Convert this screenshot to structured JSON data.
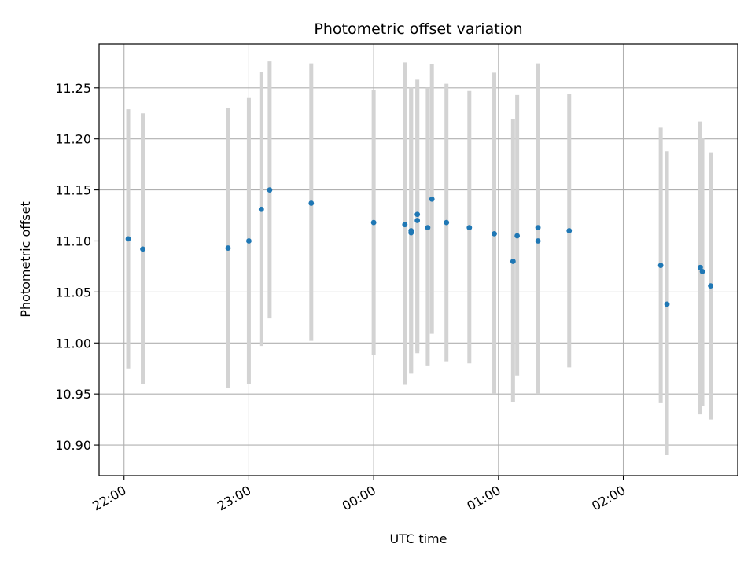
{
  "chart_data": {
    "type": "scatter",
    "title": "Photometric offset variation",
    "xlabel": "UTC time",
    "ylabel": "Photometric offset",
    "x_ticks": [
      "22:00",
      "23:00",
      "00:00",
      "01:00",
      "02:00"
    ],
    "y_ticks": [
      "10.90",
      "10.95",
      "11.00",
      "11.05",
      "11.10",
      "11.15",
      "11.20",
      "11.25"
    ],
    "xlim": [
      "21:48",
      "02:55"
    ],
    "ylim": [
      10.87,
      11.293
    ],
    "grid": true,
    "colors": {
      "point": "#1f77b4",
      "errorbar": "#d3d3d3",
      "grid": "#b0b0b0"
    },
    "points": [
      {
        "x": "22:02",
        "y": 11.102,
        "ylow": 10.975,
        "yhigh": 11.229
      },
      {
        "x": "22:09",
        "y": 11.092,
        "ylow": 10.96,
        "yhigh": 11.225
      },
      {
        "x": "22:50",
        "y": 11.093,
        "ylow": 10.956,
        "yhigh": 11.23
      },
      {
        "x": "23:00",
        "y": 11.1,
        "ylow": 10.96,
        "yhigh": 11.24
      },
      {
        "x": "23:06",
        "y": 11.131,
        "ylow": 10.997,
        "yhigh": 11.266
      },
      {
        "x": "23:10",
        "y": 11.15,
        "ylow": 11.024,
        "yhigh": 11.276
      },
      {
        "x": "23:30",
        "y": 11.137,
        "ylow": 11.002,
        "yhigh": 11.274
      },
      {
        "x": "00:00",
        "y": 11.118,
        "ylow": 10.988,
        "yhigh": 11.248
      },
      {
        "x": "00:15",
        "y": 11.116,
        "ylow": 10.959,
        "yhigh": 11.275
      },
      {
        "x": "00:18",
        "y": 11.11,
        "ylow": 10.97,
        "yhigh": 11.25
      },
      {
        "x": "00:18",
        "y": 11.108,
        "ylow": 10.97,
        "yhigh": 11.25
      },
      {
        "x": "00:21",
        "y": 11.126,
        "ylow": 10.992,
        "yhigh": 11.258
      },
      {
        "x": "00:21",
        "y": 11.12,
        "ylow": 10.99,
        "yhigh": 11.25
      },
      {
        "x": "00:26",
        "y": 11.113,
        "ylow": 10.978,
        "yhigh": 11.25
      },
      {
        "x": "00:28",
        "y": 11.141,
        "ylow": 11.009,
        "yhigh": 11.273
      },
      {
        "x": "00:35",
        "y": 11.118,
        "ylow": 10.982,
        "yhigh": 11.254
      },
      {
        "x": "00:46",
        "y": 11.113,
        "ylow": 10.98,
        "yhigh": 11.247
      },
      {
        "x": "00:58",
        "y": 11.107,
        "ylow": 10.95,
        "yhigh": 11.265
      },
      {
        "x": "01:07",
        "y": 11.08,
        "ylow": 10.942,
        "yhigh": 11.219
      },
      {
        "x": "01:09",
        "y": 11.105,
        "ylow": 10.968,
        "yhigh": 11.243
      },
      {
        "x": "01:19",
        "y": 11.113,
        "ylow": 10.953,
        "yhigh": 11.274
      },
      {
        "x": "01:19",
        "y": 11.1,
        "ylow": 10.95,
        "yhigh": 11.25
      },
      {
        "x": "01:34",
        "y": 11.11,
        "ylow": 10.976,
        "yhigh": 11.244
      },
      {
        "x": "02:18",
        "y": 11.076,
        "ylow": 10.941,
        "yhigh": 11.211
      },
      {
        "x": "02:21",
        "y": 11.038,
        "ylow": 10.89,
        "yhigh": 11.188
      },
      {
        "x": "02:37",
        "y": 11.074,
        "ylow": 10.93,
        "yhigh": 11.217
      },
      {
        "x": "02:38",
        "y": 11.07,
        "ylow": 10.938,
        "yhigh": 11.201
      },
      {
        "x": "02:42",
        "y": 11.056,
        "ylow": 10.925,
        "yhigh": 11.187
      }
    ]
  }
}
